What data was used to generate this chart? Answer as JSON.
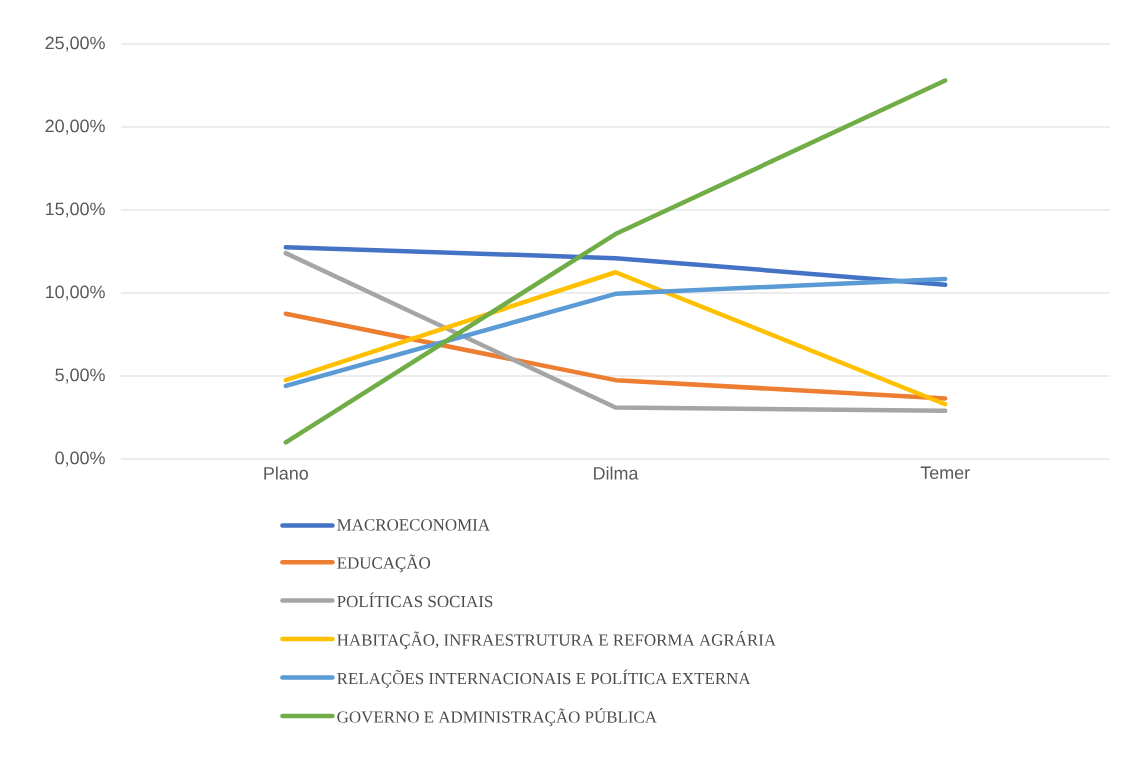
{
  "chart_data": {
    "type": "line",
    "categories": [
      "Plano",
      "Dilma",
      "Temer"
    ],
    "series": [
      {
        "name": "MACROECONOMIA",
        "color": "#4472c4",
        "values": [
          12.75,
          12.1,
          10.5
        ]
      },
      {
        "name": "EDUCAÇÃO",
        "color": "#ed7d31",
        "values": [
          8.75,
          4.75,
          3.65
        ]
      },
      {
        "name": "POLÍTICAS SOCIAIS",
        "color": "#a5a5a5",
        "values": [
          12.4,
          3.1,
          2.9
        ]
      },
      {
        "name": "HABITAÇÃO, INFRAESTRUTURA E REFORMA AGRÁRIA",
        "color": "#ffc000",
        "values": [
          4.75,
          11.25,
          3.3
        ]
      },
      {
        "name": "RELAÇÕES INTERNACIONAIS E POLÍTICA EXTERNA",
        "color": "#5b9bd5",
        "values": [
          4.4,
          9.95,
          10.85
        ]
      },
      {
        "name": "GOVERNO E ADMINISTRAÇÃO PÚBLICA",
        "color": "#70ad47",
        "values": [
          1.0,
          13.55,
          22.8
        ]
      }
    ],
    "ylim": [
      0,
      25
    ],
    "yticks": [
      {
        "value": 0,
        "label": "0,00%"
      },
      {
        "value": 5,
        "label": "5,00%"
      },
      {
        "value": 10,
        "label": "10,00%"
      },
      {
        "value": 15,
        "label": "15,00%"
      },
      {
        "value": 20,
        "label": "20,00%"
      },
      {
        "value": 25,
        "label": "25,00%"
      }
    ],
    "grid": "y",
    "legend": "bottom",
    "marker": "none",
    "line_style": "solid"
  }
}
